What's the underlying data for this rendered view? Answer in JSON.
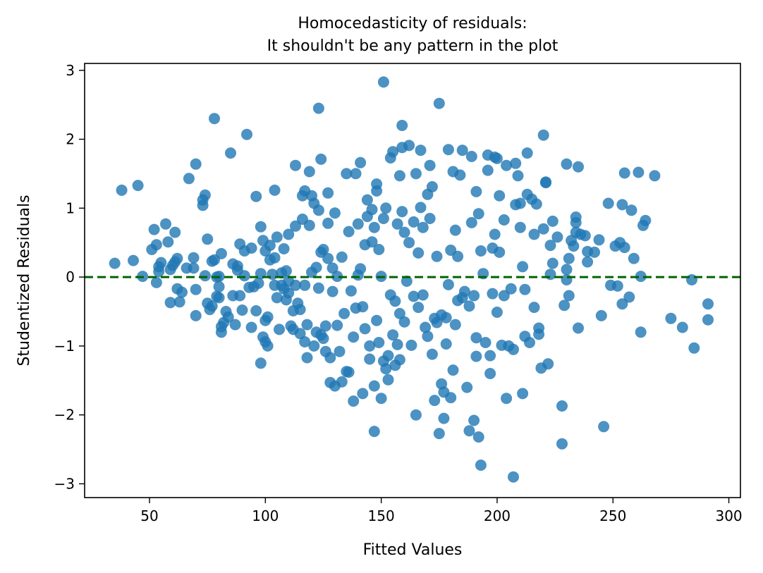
{
  "chart_data": {
    "type": "scatter",
    "title_line1": "Homocedasticity of residuals:",
    "title_line2": "It shouldn't be any pattern in the plot",
    "xlabel": "Fitted Values",
    "ylabel": "Studentized Residuals",
    "xlim": [
      22,
      305
    ],
    "ylim": [
      -3.2,
      3.1
    ],
    "x_ticks": [
      50,
      100,
      150,
      200,
      250,
      300
    ],
    "x_tick_labels": [
      "50",
      "100",
      "150",
      "200",
      "250",
      "300"
    ],
    "y_ticks": [
      -3,
      -2,
      -1,
      0,
      1,
      2,
      3
    ],
    "y_tick_labels": [
      "−3",
      "−2",
      "−1",
      "0",
      "1",
      "2",
      "3"
    ],
    "reference_line": {
      "y": 0,
      "style": "dashed",
      "color": "#006400"
    },
    "point_color": "#1f77b4",
    "grid": false,
    "points": [
      [
        35,
        0.2
      ],
      [
        38,
        1.26
      ],
      [
        43,
        0.24
      ],
      [
        45,
        1.33
      ],
      [
        47,
        0.01
      ],
      [
        51,
        0.4
      ],
      [
        52,
        0.69
      ],
      [
        53,
        0.47
      ],
      [
        53,
        -0.08
      ],
      [
        54,
        0.08
      ],
      [
        54,
        0.15
      ],
      [
        55,
        0.21
      ],
      [
        57,
        0.77
      ],
      [
        58,
        0.51
      ],
      [
        59,
        -0.37
      ],
      [
        59,
        0.11
      ],
      [
        60,
        0.17
      ],
      [
        61,
        0.22
      ],
      [
        61,
        0.65
      ],
      [
        62,
        0.27
      ],
      [
        62,
        -0.17
      ],
      [
        63,
        -0.36
      ],
      [
        64,
        -0.22
      ],
      [
        66,
        0.13
      ],
      [
        67,
        1.43
      ],
      [
        69,
        0.13
      ],
      [
        69,
        0.28
      ],
      [
        70,
        -0.56
      ],
      [
        70,
        -0.18
      ],
      [
        70,
        1.64
      ],
      [
        73,
        1.04
      ],
      [
        73,
        1.12
      ],
      [
        74,
        1.19
      ],
      [
        74,
        0.02
      ],
      [
        75,
        -0.38
      ],
      [
        75,
        0.55
      ],
      [
        76,
        -0.47
      ],
      [
        77,
        -0.42
      ],
      [
        77,
        0.23
      ],
      [
        78,
        2.3
      ],
      [
        78,
        0.25
      ],
      [
        79,
        0.0
      ],
      [
        79,
        -0.28
      ],
      [
        80,
        -0.3
      ],
      [
        80,
        -0.14
      ],
      [
        80,
        0.01
      ],
      [
        81,
        -0.72
      ],
      [
        81,
        -0.8
      ],
      [
        81,
        0.34
      ],
      [
        82,
        -0.66
      ],
      [
        83,
        -0.5
      ],
      [
        84,
        -0.58
      ],
      [
        85,
        1.8
      ],
      [
        86,
        0.19
      ],
      [
        86,
        -0.27
      ],
      [
        87,
        -0.69
      ],
      [
        88,
        0.1
      ],
      [
        88,
        0.16
      ],
      [
        89,
        -0.27
      ],
      [
        89,
        0.48
      ],
      [
        90,
        -0.48
      ],
      [
        91,
        0.02
      ],
      [
        91,
        0.38
      ],
      [
        92,
        2.07
      ],
      [
        93,
        -0.15
      ],
      [
        94,
        0.42
      ],
      [
        94,
        -0.73
      ],
      [
        95,
        -0.14
      ],
      [
        96,
        -0.49
      ],
      [
        96,
        1.17
      ],
      [
        97,
        -0.09
      ],
      [
        98,
        0.05
      ],
      [
        98,
        0.73
      ],
      [
        98,
        -1.25
      ],
      [
        99,
        -0.87
      ],
      [
        99,
        0.53
      ],
      [
        100,
        0.38
      ],
      [
        100,
        -0.63
      ],
      [
        100,
        -0.94
      ],
      [
        101,
        -1.0
      ],
      [
        101,
        -0.58
      ],
      [
        102,
        0.25
      ],
      [
        102,
        0.46
      ],
      [
        103,
        0.04
      ],
      [
        104,
        -0.12
      ],
      [
        104,
        0.28
      ],
      [
        104,
        1.26
      ],
      [
        105,
        0.58
      ],
      [
        105,
        -0.3
      ],
      [
        106,
        -0.76
      ],
      [
        107,
        0.06
      ],
      [
        107,
        -0.12
      ],
      [
        108,
        -0.17
      ],
      [
        108,
        0.41
      ],
      [
        109,
        0.09
      ],
      [
        109,
        -0.33
      ],
      [
        110,
        -0.23
      ],
      [
        110,
        -0.06
      ],
      [
        110,
        0.62
      ],
      [
        111,
        -0.71
      ],
      [
        112,
        -0.49
      ],
      [
        112,
        -0.76
      ],
      [
        113,
        1.62
      ],
      [
        113,
        -0.12
      ],
      [
        113,
        0.74
      ],
      [
        114,
        -0.38
      ],
      [
        115,
        -0.82
      ],
      [
        115,
        -0.47
      ],
      [
        116,
        1.18
      ],
      [
        116,
        0.84
      ],
      [
        117,
        1.25
      ],
      [
        117,
        -0.94
      ],
      [
        117,
        -0.12
      ],
      [
        118,
        -1.17
      ],
      [
        118,
        -0.69
      ],
      [
        119,
        1.53
      ],
      [
        119,
        0.75
      ],
      [
        120,
        1.18
      ],
      [
        120,
        0.07
      ],
      [
        121,
        -1.0
      ],
      [
        121,
        1.07
      ],
      [
        122,
        0.14
      ],
      [
        122,
        -0.8
      ],
      [
        123,
        2.45
      ],
      [
        123,
        -0.16
      ],
      [
        123,
        0.97
      ],
      [
        124,
        1.71
      ],
      [
        124,
        0.36
      ],
      [
        124,
        -0.84
      ],
      [
        125,
        -0.89
      ],
      [
        125,
        0.4
      ],
      [
        126,
        -0.71
      ],
      [
        126,
        -1.08
      ],
      [
        127,
        1.22
      ],
      [
        127,
        0.27
      ],
      [
        127,
        0.78
      ],
      [
        128,
        -1.17
      ],
      [
        128,
        -1.53
      ],
      [
        129,
        0.13
      ],
      [
        129,
        -0.21
      ],
      [
        130,
        0.93
      ],
      [
        130,
        -1.58
      ],
      [
        131,
        -0.7
      ],
      [
        131,
        0.01
      ],
      [
        132,
        -1.08
      ],
      [
        133,
        -1.52
      ],
      [
        133,
        0.29
      ],
      [
        134,
        -0.53
      ],
      [
        135,
        1.5
      ],
      [
        135,
        -1.37
      ],
      [
        136,
        -1.38
      ],
      [
        136,
        0.66
      ],
      [
        137,
        -0.2
      ],
      [
        138,
        -1.8
      ],
      [
        138,
        -0.87
      ],
      [
        139,
        1.5
      ],
      [
        139,
        -0.45
      ],
      [
        140,
        0.03
      ],
      [
        140,
        0.77
      ],
      [
        141,
        1.66
      ],
      [
        141,
        0.12
      ],
      [
        142,
        -0.43
      ],
      [
        142,
        -1.69
      ],
      [
        143,
        -0.75
      ],
      [
        143,
        0.47
      ],
      [
        144,
        0.88
      ],
      [
        144,
        1.12
      ],
      [
        145,
        -1.0
      ],
      [
        145,
        -1.19
      ],
      [
        146,
        0.98
      ],
      [
        146,
        0.51
      ],
      [
        147,
        -2.24
      ],
      [
        147,
        -1.58
      ],
      [
        147,
        0.72
      ],
      [
        148,
        1.35
      ],
      [
        148,
        -0.63
      ],
      [
        148,
        1.25
      ],
      [
        149,
        -0.95
      ],
      [
        149,
        0.4
      ],
      [
        150,
        -1.76
      ],
      [
        150,
        0.01
      ],
      [
        151,
        2.83
      ],
      [
        151,
        -1.22
      ],
      [
        151,
        0.85
      ],
      [
        152,
        -1.33
      ],
      [
        152,
        1.0
      ],
      [
        153,
        -1.49
      ],
      [
        153,
        -1.14
      ],
      [
        154,
        1.73
      ],
      [
        154,
        -0.26
      ],
      [
        155,
        1.82
      ],
      [
        155,
        -0.84
      ],
      [
        156,
        -0.35
      ],
      [
        156,
        -1.28
      ],
      [
        157,
        0.77
      ],
      [
        157,
        -0.98
      ],
      [
        158,
        1.47
      ],
      [
        158,
        -0.53
      ],
      [
        158,
        -1.2
      ],
      [
        159,
        2.2
      ],
      [
        159,
        0.95
      ],
      [
        159,
        1.88
      ],
      [
        160,
        0.65
      ],
      [
        160,
        -0.65
      ],
      [
        161,
        -0.06
      ],
      [
        162,
        1.91
      ],
      [
        162,
        0.5
      ],
      [
        163,
        -0.99
      ],
      [
        164,
        0.8
      ],
      [
        164,
        -0.28
      ],
      [
        165,
        1.5
      ],
      [
        165,
        -2.0
      ],
      [
        166,
        0.35
      ],
      [
        166,
        -0.44
      ],
      [
        167,
        1.84
      ],
      [
        167,
        1.01
      ],
      [
        168,
        -0.26
      ],
      [
        168,
        0.72
      ],
      [
        169,
        -0.73
      ],
      [
        170,
        1.2
      ],
      [
        170,
        -0.86
      ],
      [
        171,
        1.62
      ],
      [
        171,
        0.85
      ],
      [
        172,
        1.31
      ],
      [
        172,
        -1.12
      ],
      [
        173,
        -0.6
      ],
      [
        173,
        -1.79
      ],
      [
        174,
        0.3
      ],
      [
        174,
        -0.66
      ],
      [
        175,
        -2.27
      ],
      [
        175,
        2.52
      ],
      [
        176,
        -1.55
      ],
      [
        176,
        -0.55
      ],
      [
        177,
        -2.05
      ],
      [
        177,
        -1.67
      ],
      [
        178,
        -0.59
      ],
      [
        178,
        -0.97
      ],
      [
        179,
        1.85
      ],
      [
        179,
        -0.11
      ],
      [
        180,
        0.39
      ],
      [
        180,
        -1.75
      ],
      [
        181,
        1.53
      ],
      [
        181,
        -1.35
      ],
      [
        182,
        0.68
      ],
      [
        182,
        -0.69
      ],
      [
        183,
        0.3
      ],
      [
        183,
        -0.34
      ],
      [
        184,
        1.48
      ],
      [
        185,
        1.84
      ],
      [
        185,
        -0.3
      ],
      [
        186,
        -0.21
      ],
      [
        187,
        -1.6
      ],
      [
        188,
        -2.23
      ],
      [
        188,
        -0.42
      ],
      [
        189,
        1.75
      ],
      [
        189,
        0.79
      ],
      [
        190,
        -0.27
      ],
      [
        190,
        -2.08
      ],
      [
        191,
        1.24
      ],
      [
        191,
        -1.15
      ],
      [
        191,
        -0.88
      ],
      [
        192,
        0.92
      ],
      [
        192,
        -2.32
      ],
      [
        193,
        -2.73
      ],
      [
        193,
        0.38
      ],
      [
        194,
        0.05
      ],
      [
        195,
        -0.95
      ],
      [
        196,
        1.77
      ],
      [
        196,
        1.55
      ],
      [
        197,
        -1.4
      ],
      [
        197,
        -1.14
      ],
      [
        198,
        0.42
      ],
      [
        198,
        -0.24
      ],
      [
        199,
        1.74
      ],
      [
        199,
        0.62
      ],
      [
        200,
        1.72
      ],
      [
        200,
        -0.51
      ],
      [
        201,
        1.18
      ],
      [
        201,
        0.36
      ],
      [
        202,
        -0.99
      ],
      [
        203,
        0.83
      ],
      [
        203,
        -0.27
      ],
      [
        204,
        1.62
      ],
      [
        204,
        -1.76
      ],
      [
        205,
        -1.0
      ],
      [
        206,
        -0.17
      ],
      [
        207,
        -1.05
      ],
      [
        207,
        -2.9
      ],
      [
        208,
        1.65
      ],
      [
        208,
        1.05
      ],
      [
        209,
        1.47
      ],
      [
        210,
        0.72
      ],
      [
        210,
        1.07
      ],
      [
        211,
        -1.69
      ],
      [
        211,
        0.15
      ],
      [
        212,
        -0.18
      ],
      [
        212,
        -0.86
      ],
      [
        213,
        1.8
      ],
      [
        213,
        1.2
      ],
      [
        214,
        -0.95
      ],
      [
        215,
        1.13
      ],
      [
        216,
        0.62
      ],
      [
        216,
        -0.44
      ],
      [
        217,
        1.06
      ],
      [
        218,
        -0.74
      ],
      [
        218,
        -0.83
      ],
      [
        219,
        -1.32
      ],
      [
        220,
        0.7
      ],
      [
        220,
        2.06
      ],
      [
        221,
        1.37
      ],
      [
        221,
        1.38
      ],
      [
        222,
        -1.26
      ],
      [
        223,
        0.46
      ],
      [
        223,
        0.04
      ],
      [
        224,
        0.2
      ],
      [
        224,
        0.81
      ],
      [
        226,
        0.58
      ],
      [
        228,
        -1.87
      ],
      [
        228,
        -2.42
      ],
      [
        229,
        -0.41
      ],
      [
        230,
        1.64
      ],
      [
        230,
        0.11
      ],
      [
        230,
        -0.04
      ],
      [
        231,
        0.27
      ],
      [
        231,
        -0.27
      ],
      [
        232,
        0.53
      ],
      [
        233,
        0.45
      ],
      [
        234,
        0.87
      ],
      [
        234,
        0.79
      ],
      [
        234,
        0.65
      ],
      [
        235,
        -0.74
      ],
      [
        235,
        1.6
      ],
      [
        236,
        0.62
      ],
      [
        238,
        0.6
      ],
      [
        239,
        0.22
      ],
      [
        239,
        0.37
      ],
      [
        242,
        0.36
      ],
      [
        244,
        0.54
      ],
      [
        245,
        -0.56
      ],
      [
        246,
        -2.17
      ],
      [
        248,
        1.07
      ],
      [
        249,
        -0.12
      ],
      [
        251,
        0.45
      ],
      [
        252,
        -0.13
      ],
      [
        253,
        0.5
      ],
      [
        254,
        1.05
      ],
      [
        254,
        -0.39
      ],
      [
        255,
        1.51
      ],
      [
        255,
        0.43
      ],
      [
        257,
        -0.29
      ],
      [
        258,
        0.97
      ],
      [
        259,
        0.27
      ],
      [
        261,
        1.52
      ],
      [
        262,
        0.01
      ],
      [
        262,
        -0.8
      ],
      [
        263,
        0.75
      ],
      [
        264,
        0.82
      ],
      [
        268,
        1.47
      ],
      [
        275,
        -0.6
      ],
      [
        280,
        -0.73
      ],
      [
        284,
        -0.04
      ],
      [
        285,
        -1.03
      ],
      [
        291,
        -0.39
      ],
      [
        291,
        -0.62
      ]
    ]
  }
}
